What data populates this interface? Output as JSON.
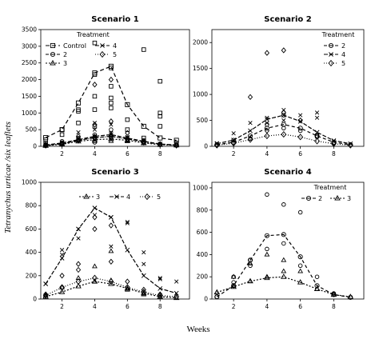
{
  "figure": {
    "ylabel": "Tetranychus urticae /six leaflets",
    "xlabel": "Weeks",
    "legend_title": "Treatment"
  },
  "chart_data": [
    {
      "type": "scatter",
      "title": "Scenario 1",
      "ylim": [
        0,
        3500
      ],
      "yticks": [
        0,
        500,
        1000,
        1500,
        2000,
        2500,
        3000,
        3500
      ],
      "xlim": [
        0.7,
        9.8
      ],
      "xticks": [
        2,
        4,
        6,
        8
      ],
      "legend": {
        "placement": "top-left",
        "title": "Treatment"
      },
      "series": [
        {
          "name": "Control",
          "marker": "square",
          "line": "dashed",
          "x": [
            1,
            2,
            3,
            4,
            5,
            6,
            7,
            8,
            9
          ],
          "y": [
            260,
            500,
            1300,
            2200,
            2400,
            1250,
            600,
            250,
            180
          ],
          "points": [
            [
              1,
              200
            ],
            [
              1,
              100
            ],
            [
              2,
              500
            ],
            [
              2,
              350
            ],
            [
              3,
              700
            ],
            [
              3,
              1100
            ],
            [
              3,
              1050
            ],
            [
              4,
              1100
            ],
            [
              4,
              1500
            ],
            [
              4,
              2150
            ],
            [
              4,
              600
            ],
            [
              4,
              3100
            ],
            [
              5,
              2350
            ],
            [
              5,
              1800
            ],
            [
              5,
              1450
            ],
            [
              5,
              1300
            ],
            [
              5,
              1150
            ],
            [
              6,
              800
            ],
            [
              6,
              500
            ],
            [
              7,
              2900
            ],
            [
              7,
              250
            ],
            [
              7,
              180
            ],
            [
              8,
              1950
            ],
            [
              8,
              1000
            ],
            [
              8,
              900
            ],
            [
              8,
              600
            ],
            [
              9,
              100
            ]
          ]
        },
        {
          "name": "2",
          "marker": "circle",
          "line": "dashed",
          "x": [
            1,
            2,
            3,
            4,
            5,
            6,
            7,
            8,
            9
          ],
          "y": [
            30,
            80,
            180,
            260,
            300,
            220,
            150,
            60,
            40
          ],
          "points": [
            [
              1,
              20
            ],
            [
              1,
              60
            ],
            [
              2,
              150
            ],
            [
              3,
              250
            ],
            [
              3,
              180
            ],
            [
              4,
              350
            ],
            [
              4,
              120
            ],
            [
              5,
              500
            ],
            [
              5,
              250
            ],
            [
              6,
              200
            ],
            [
              7,
              120
            ],
            [
              8,
              70
            ],
            [
              9,
              40
            ]
          ]
        },
        {
          "name": "3",
          "marker": "triangle",
          "line": "dashed",
          "x": [
            1,
            2,
            3,
            4,
            5,
            6,
            7,
            8,
            9
          ],
          "y": [
            20,
            60,
            150,
            200,
            220,
            180,
            100,
            50,
            30
          ],
          "points": [
            [
              1,
              30
            ],
            [
              2,
              80
            ],
            [
              3,
              200
            ],
            [
              4,
              300
            ],
            [
              4,
              150
            ],
            [
              5,
              350
            ],
            [
              5,
              160
            ],
            [
              6,
              150
            ],
            [
              7,
              90
            ],
            [
              8,
              40
            ]
          ]
        },
        {
          "name": "4",
          "marker": "x",
          "line": "dashed",
          "x": [
            1,
            2,
            3,
            4,
            5,
            6,
            7,
            8,
            9
          ],
          "y": [
            40,
            100,
            200,
            300,
            350,
            250,
            150,
            70,
            40
          ],
          "points": [
            [
              1,
              50
            ],
            [
              2,
              120
            ],
            [
              3,
              250
            ],
            [
              3,
              420
            ],
            [
              4,
              500
            ],
            [
              4,
              700
            ],
            [
              5,
              650
            ],
            [
              5,
              400
            ],
            [
              6,
              280
            ],
            [
              7,
              150
            ],
            [
              8,
              60
            ]
          ]
        },
        {
          "name": "5",
          "marker": "diamond",
          "line": "dashed",
          "x": [
            1,
            2,
            3,
            4,
            5,
            6,
            7,
            8,
            9
          ],
          "y": [
            30,
            70,
            180,
            250,
            300,
            220,
            120,
            60,
            30
          ],
          "points": [
            [
              1,
              30
            ],
            [
              2,
              100
            ],
            [
              3,
              300
            ],
            [
              4,
              650
            ],
            [
              4,
              1850
            ],
            [
              5,
              2000
            ],
            [
              5,
              750
            ],
            [
              6,
              400
            ],
            [
              7,
              130
            ],
            [
              8,
              60
            ]
          ]
        }
      ]
    },
    {
      "type": "scatter",
      "title": "Scenario 2",
      "ylim": [
        0,
        2250
      ],
      "yticks": [
        0,
        500,
        1000,
        1500,
        2000
      ],
      "xlim": [
        0.7,
        9.8
      ],
      "xticks": [
        2,
        4,
        6,
        8
      ],
      "legend": {
        "placement": "top-right",
        "title": "Treatment"
      },
      "series": [
        {
          "name": "2",
          "marker": "circle",
          "line": "dashed",
          "x": [
            1,
            2,
            3,
            4,
            5,
            6,
            7,
            8,
            9
          ],
          "y": [
            30,
            80,
            200,
            350,
            420,
            350,
            200,
            80,
            30
          ],
          "points": [
            [
              1,
              30
            ],
            [
              2,
              120
            ],
            [
              3,
              150
            ],
            [
              4,
              420
            ],
            [
              5,
              600
            ],
            [
              5,
              350
            ],
            [
              6,
              300
            ],
            [
              7,
              180
            ],
            [
              8,
              60
            ]
          ]
        },
        {
          "name": "4",
          "marker": "x",
          "line": "dashed",
          "x": [
            1,
            2,
            3,
            4,
            5,
            6,
            7,
            8,
            9
          ],
          "y": [
            50,
            120,
            300,
            520,
            600,
            480,
            270,
            110,
            50
          ],
          "points": [
            [
              1,
              60
            ],
            [
              2,
              250
            ],
            [
              3,
              450
            ],
            [
              4,
              550
            ],
            [
              4,
              450
            ],
            [
              5,
              700
            ],
            [
              5,
              500
            ],
            [
              6,
              600
            ],
            [
              7,
              650
            ],
            [
              7,
              550
            ],
            [
              8,
              100
            ]
          ]
        },
        {
          "name": "5",
          "marker": "diamond",
          "line": "dashed",
          "x": [
            1,
            2,
            3,
            4,
            5,
            6,
            7,
            8,
            9
          ],
          "y": [
            20,
            60,
            130,
            200,
            230,
            180,
            100,
            50,
            20
          ],
          "points": [
            [
              1,
              20
            ],
            [
              2,
              60
            ],
            [
              3,
              950
            ],
            [
              4,
              1800
            ],
            [
              4,
              300
            ],
            [
              5,
              1850
            ],
            [
              5,
              650
            ],
            [
              6,
              500
            ],
            [
              7,
              200
            ],
            [
              8,
              60
            ]
          ]
        }
      ]
    },
    {
      "type": "scatter",
      "title": "Scenario 3",
      "ylim": [
        0,
        1000
      ],
      "yticks": [
        0,
        200,
        400,
        600,
        800,
        1000
      ],
      "xlim": [
        0.7,
        9.8
      ],
      "xticks": [
        2,
        4,
        6,
        8
      ],
      "legend": {
        "placement": "top-right",
        "title": ""
      },
      "series": [
        {
          "name": "3",
          "marker": "triangle",
          "line": "dashed",
          "x": [
            1,
            2,
            3,
            4,
            5,
            6,
            7,
            8,
            9
          ],
          "y": [
            20,
            60,
            110,
            150,
            130,
            90,
            50,
            20,
            10
          ],
          "points": [
            [
              1,
              30
            ],
            [
              2,
              100
            ],
            [
              3,
              180
            ],
            [
              4,
              280
            ],
            [
              4,
              150
            ],
            [
              5,
              410
            ],
            [
              5,
              160
            ],
            [
              6,
              80
            ],
            [
              7,
              40
            ],
            [
              8,
              20
            ]
          ]
        },
        {
          "name": "4",
          "marker": "x",
          "line": "dashed",
          "x": [
            1,
            2,
            3,
            4,
            5,
            6,
            7,
            8,
            9
          ],
          "y": [
            130,
            350,
            600,
            780,
            700,
            420,
            200,
            90,
            50
          ],
          "points": [
            [
              1,
              130
            ],
            [
              2,
              420
            ],
            [
              2,
              380
            ],
            [
              3,
              520
            ],
            [
              3,
              600
            ],
            [
              4,
              780
            ],
            [
              4,
              720
            ],
            [
              5,
              700
            ],
            [
              5,
              450
            ],
            [
              6,
              660
            ],
            [
              6,
              650
            ],
            [
              7,
              400
            ],
            [
              7,
              300
            ],
            [
              8,
              180
            ],
            [
              8,
              170
            ],
            [
              9,
              150
            ]
          ]
        },
        {
          "name": "5",
          "marker": "diamond",
          "line": "dashed",
          "x": [
            1,
            2,
            3,
            4,
            5,
            6,
            7,
            8,
            9
          ],
          "y": [
            30,
            100,
            150,
            180,
            150,
            100,
            60,
            30,
            20
          ],
          "points": [
            [
              1,
              40
            ],
            [
              2,
              200
            ],
            [
              3,
              300
            ],
            [
              3,
              250
            ],
            [
              4,
              700
            ],
            [
              4,
              600
            ],
            [
              5,
              630
            ],
            [
              5,
              320
            ],
            [
              6,
              150
            ],
            [
              7,
              80
            ],
            [
              8,
              40
            ]
          ]
        }
      ]
    },
    {
      "type": "scatter",
      "title": "Scenario 4",
      "ylim": [
        0,
        1050
      ],
      "yticks": [
        0,
        200,
        400,
        600,
        800,
        1000
      ],
      "xlim": [
        0.7,
        9.8
      ],
      "xticks": [
        2,
        4,
        6,
        8
      ],
      "legend": {
        "placement": "top-right",
        "title": "Treatment"
      },
      "series": [
        {
          "name": "2",
          "marker": "circle",
          "line": "dashed",
          "x": [
            1,
            2,
            3,
            4,
            5,
            6,
            7,
            8,
            9
          ],
          "y": [
            20,
            120,
            350,
            570,
            580,
            380,
            120,
            40,
            15
          ],
          "points": [
            [
              1,
              20
            ],
            [
              2,
              200
            ],
            [
              2,
              150
            ],
            [
              3,
              350
            ],
            [
              3,
              300
            ],
            [
              4,
              940
            ],
            [
              4,
              450
            ],
            [
              5,
              850
            ],
            [
              5,
              500
            ],
            [
              6,
              780
            ],
            [
              6,
              300
            ],
            [
              7,
              200
            ],
            [
              8,
              50
            ]
          ]
        },
        {
          "name": "3",
          "marker": "triangle",
          "line": "dashed",
          "x": [
            1,
            2,
            3,
            4,
            5,
            6,
            7,
            8,
            9
          ],
          "y": [
            60,
            110,
            160,
            190,
            200,
            150,
            90,
            40,
            20
          ],
          "points": [
            [
              1,
              60
            ],
            [
              2,
              120
            ],
            [
              2,
              200
            ],
            [
              3,
              320
            ],
            [
              3,
              160
            ],
            [
              4,
              400
            ],
            [
              4,
              200
            ],
            [
              5,
              350
            ],
            [
              5,
              250
            ],
            [
              6,
              250
            ],
            [
              7,
              90
            ],
            [
              8,
              40
            ]
          ]
        }
      ]
    }
  ]
}
